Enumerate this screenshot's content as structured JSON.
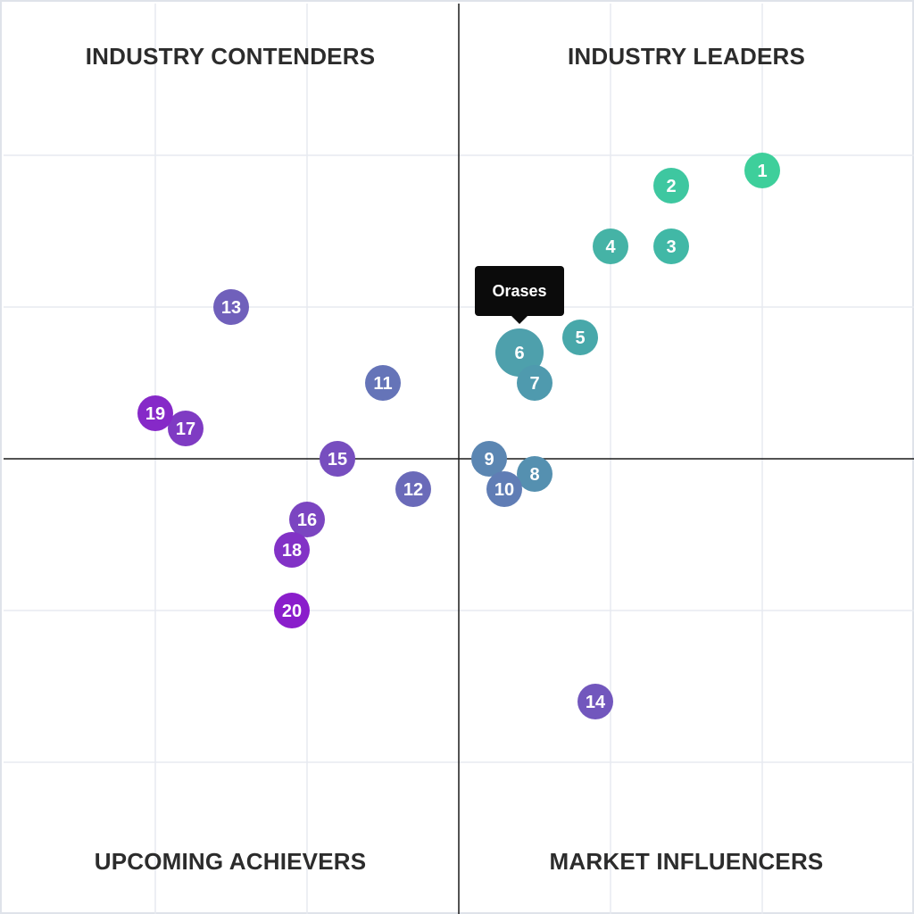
{
  "quadrants": {
    "top_left": "INDUSTRY CONTENDERS",
    "top_right": "INDUSTRY LEADERS",
    "bottom_left": "UPCOMING ACHIEVERS",
    "bottom_right": "MARKET INFLUENCERS"
  },
  "tooltip": {
    "text": "Orases",
    "target_label": "6"
  },
  "chart_data": {
    "type": "scatter",
    "xlim": [
      -3,
      3
    ],
    "ylim": [
      -3,
      3
    ],
    "grid": true,
    "points": [
      {
        "label": "1",
        "x": 2.0,
        "y": 1.9,
        "color": "#3ecf9b",
        "highlight": false
      },
      {
        "label": "2",
        "x": 1.4,
        "y": 1.8,
        "color": "#3ec7a0",
        "highlight": false
      },
      {
        "label": "3",
        "x": 1.4,
        "y": 1.4,
        "color": "#41b8a6",
        "highlight": false
      },
      {
        "label": "4",
        "x": 1.0,
        "y": 1.4,
        "color": "#45b3a6",
        "highlight": false
      },
      {
        "label": "5",
        "x": 0.8,
        "y": 0.8,
        "color": "#48a8aa",
        "highlight": false
      },
      {
        "label": "6",
        "x": 0.4,
        "y": 0.7,
        "color": "#4ea0ac",
        "highlight": true
      },
      {
        "label": "7",
        "x": 0.5,
        "y": 0.5,
        "color": "#4f9aae",
        "highlight": false
      },
      {
        "label": "8",
        "x": 0.5,
        "y": -0.1,
        "color": "#5590b0",
        "highlight": false
      },
      {
        "label": "9",
        "x": 0.2,
        "y": 0.0,
        "color": "#5b86b2",
        "highlight": false
      },
      {
        "label": "10",
        "x": 0.3,
        "y": -0.2,
        "color": "#607db5",
        "highlight": false
      },
      {
        "label": "11",
        "x": -0.5,
        "y": 0.5,
        "color": "#6574b8",
        "highlight": false
      },
      {
        "label": "12",
        "x": -0.3,
        "y": -0.2,
        "color": "#6a6ab9",
        "highlight": false
      },
      {
        "label": "13",
        "x": -1.5,
        "y": 1.0,
        "color": "#7060bb",
        "highlight": false
      },
      {
        "label": "14",
        "x": 0.9,
        "y": -1.6,
        "color": "#7257bd",
        "highlight": false
      },
      {
        "label": "15",
        "x": -0.8,
        "y": 0.0,
        "color": "#774ebf",
        "highlight": false
      },
      {
        "label": "16",
        "x": -1.0,
        "y": -0.4,
        "color": "#7b45c1",
        "highlight": false
      },
      {
        "label": "17",
        "x": -1.8,
        "y": 0.2,
        "color": "#7f3bc3",
        "highlight": false
      },
      {
        "label": "18",
        "x": -1.1,
        "y": -0.6,
        "color": "#8232c6",
        "highlight": false
      },
      {
        "label": "19",
        "x": -2.0,
        "y": 0.3,
        "color": "#8629c8",
        "highlight": false
      },
      {
        "label": "20",
        "x": -1.1,
        "y": -1.0,
        "color": "#8a1ecb",
        "highlight": false
      }
    ]
  },
  "colors": {
    "grid": "#e7eaf0",
    "axis": "#1a1a1a",
    "tooltip_bg": "#0b0b0b",
    "border": "#dfe3ea"
  }
}
